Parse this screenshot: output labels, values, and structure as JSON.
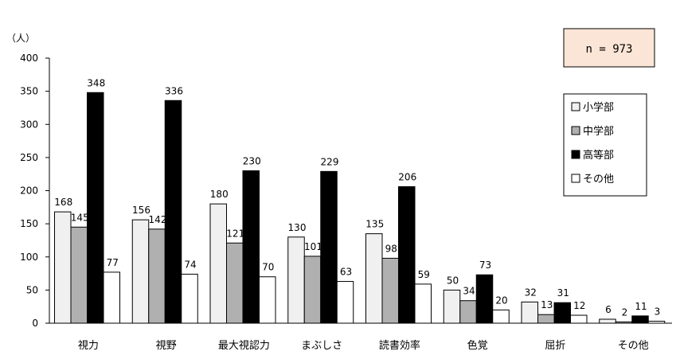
{
  "chart_data": {
    "type": "bar",
    "y_unit_label": "（人）",
    "n_label": "n = 973",
    "categories": [
      "視力",
      "視野",
      "最大視認力",
      "まぶしさ",
      "読書効率",
      "色覚",
      "屈折",
      "その他"
    ],
    "series": [
      {
        "name": "小学部",
        "color": "#f0f0f0",
        "values": [
          168,
          156,
          180,
          130,
          135,
          50,
          32,
          6
        ]
      },
      {
        "name": "中学部",
        "color": "#b0b0b0",
        "values": [
          145,
          142,
          121,
          101,
          98,
          34,
          13,
          2
        ]
      },
      {
        "name": "高等部",
        "color": "#000000",
        "values": [
          348,
          336,
          230,
          229,
          206,
          73,
          31,
          11
        ]
      },
      {
        "name": "その他",
        "color": "#ffffff",
        "values": [
          77,
          74,
          70,
          63,
          59,
          20,
          12,
          3
        ]
      }
    ],
    "ylim": [
      0,
      400
    ],
    "yticks": [
      0,
      50,
      100,
      150,
      200,
      250,
      300,
      350,
      400
    ],
    "grid": false,
    "legend_position": "right",
    "n_box_color": "#fbe5d6"
  }
}
